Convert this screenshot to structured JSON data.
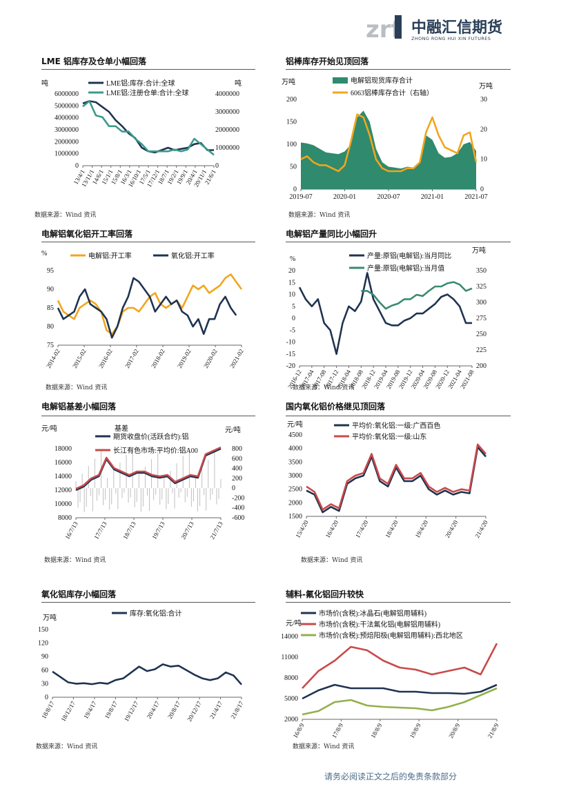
{
  "header": {
    "logo_mark": "zrf",
    "logo_cn": "中融汇信期货",
    "logo_en": "ZHONG RONG HUI XIN FUTURES",
    "colors": {
      "logo_gray": "#b9bec4",
      "logo_blue": "#2a3f57"
    }
  },
  "footer": {
    "disclaimer": "请务必阅读正文之后的免责条款部分"
  },
  "panels": [
    {
      "title": "LME 铝库存及仓单小幅回落",
      "source": "数据来源：Wind 资讯"
    },
    {
      "title": "铝棒库存开始见顶回落",
      "source": "数据来源：Wind 资讯"
    },
    {
      "title": "电解铝氧化铝开工率回落",
      "source": "数据来源：Wind 资讯"
    },
    {
      "title": "电解铝产量同比小幅回升",
      "source": "数据来源：Wind 资讯"
    },
    {
      "title": "电解铝基差小幅回落",
      "source": "数据来源：Wind 资讯"
    },
    {
      "title": "国内氧化铝价格继见顶回落",
      "source": "数据来源：Wind 资讯"
    },
    {
      "title": "氧化铝库存小幅回落",
      "source": "数据来源：Wind 资讯"
    },
    {
      "title": "辅料-氟化铝回升较快",
      "source": "数据来源：Wind 资讯"
    }
  ],
  "chart_data": [
    {
      "type": "line",
      "left_unit": "吨",
      "right_unit": "吨",
      "yticks_left": [
        "6000000",
        "5000000",
        "4000000",
        "3000000",
        "2000000",
        "1000000",
        "0"
      ],
      "yticks_right": [
        "4000000",
        "3000000",
        "2000000",
        "1000000",
        "0"
      ],
      "ylim_left": [
        0,
        6000000
      ],
      "ylim_right": [
        0,
        4000000
      ],
      "xticks": [
        "13/4/1",
        "13/11/1",
        "14/6/1",
        "15/1/1",
        "15/8/1",
        "16/3/1",
        "16/10/1",
        "17/5/1",
        "17/12/1",
        "18/7/1",
        "19/2/1",
        "19/9/1",
        "20/4/1",
        "20/11/1",
        "21/6/1"
      ],
      "series": [
        {
          "name": "LME铝:库存:合计:全球",
          "color": "#1f3350",
          "axis": "left",
          "values": [
            5200000,
            5400000,
            5300000,
            4900000,
            4500000,
            3800000,
            3300000,
            2700000,
            2300000,
            1500000,
            1200000,
            1100000,
            1300000,
            1500000,
            1300000,
            1400000,
            1500000,
            1800000,
            1900000,
            1300000,
            1300000
          ]
        },
        {
          "name": "LME铝:注册仓单:合计:全球",
          "color": "#3a9a8c",
          "axis": "right",
          "values": [
            3300000,
            3600000,
            2800000,
            2700000,
            2200000,
            2200000,
            1900000,
            1900000,
            1500000,
            1200000,
            800000,
            800000,
            800000,
            800000,
            900000,
            800000,
            900000,
            1500000,
            1200000,
            900000,
            600000
          ]
        }
      ]
    },
    {
      "type": "area+line",
      "left_unit": "万吨",
      "right_unit": "万吨",
      "yticks_left": [
        "200",
        "150",
        "100",
        "50",
        "0"
      ],
      "yticks_right": [
        "30",
        "20",
        "10",
        "0"
      ],
      "ylim_left": [
        0,
        200
      ],
      "ylim_right": [
        0,
        30
      ],
      "xticks": [
        "2019-07",
        "2020-01",
        "2020-07",
        "2021-01",
        "2021-07"
      ],
      "series": [
        {
          "name": "电解铝现货库存合计",
          "color": "#2f8a6e",
          "axis": "left",
          "values": [
            104,
            102,
            98,
            90,
            82,
            80,
            78,
            84,
            100,
            160,
            175,
            150,
            90,
            60,
            50,
            48,
            46,
            50,
            48,
            60,
            120,
            110,
            80,
            70,
            72,
            80,
            100,
            105,
            85
          ]
        },
        {
          "name": "6063铝棒库存合计（右轴）",
          "color": "#f2a51c",
          "axis": "right",
          "values": [
            10,
            11,
            9,
            8,
            8,
            7,
            6,
            8,
            16,
            25,
            24,
            18,
            10,
            7,
            6,
            6,
            6,
            7,
            7,
            9,
            19,
            24,
            18,
            14,
            13,
            12,
            18,
            19,
            9
          ]
        }
      ]
    },
    {
      "type": "line",
      "unit": "%",
      "yticks": [
        "95",
        "90",
        "85",
        "80",
        "75"
      ],
      "ylim": [
        75,
        95
      ],
      "xticks": [
        "2014-02",
        "2015-02",
        "2016-02",
        "2017-02",
        "2018-02",
        "2019-02",
        "2020-02",
        "2021-02"
      ],
      "series": [
        {
          "name": "电解铝:开工率",
          "color": "#f2a51c",
          "values": [
            87,
            84,
            83,
            82,
            85,
            86,
            87,
            86,
            84,
            79,
            78,
            80,
            84,
            85,
            85,
            84,
            86,
            88,
            89,
            86,
            85,
            86,
            87,
            85,
            88,
            91,
            90,
            91,
            89,
            90,
            91,
            93,
            94,
            92,
            90
          ]
        },
        {
          "name": "氧化铝:开工率",
          "color": "#1f3350",
          "values": [
            85,
            82,
            83,
            84,
            88,
            90,
            86,
            85,
            84,
            82,
            77,
            80,
            85,
            88,
            93,
            92,
            90,
            88,
            84,
            86,
            88,
            86,
            87,
            84,
            83,
            80,
            82,
            78,
            82,
            82,
            86,
            88,
            85,
            83
          ]
        }
      ]
    },
    {
      "type": "line",
      "left_unit": "%",
      "right_unit": "万吨",
      "yticks_left": [
        "20",
        "15",
        "10",
        "5",
        "0",
        "-5",
        "-10",
        "-15",
        "-20"
      ],
      "yticks_right": [
        "350",
        "325",
        "300",
        "275",
        "250",
        "225",
        "200"
      ],
      "ylim_left": [
        -20,
        20
      ],
      "ylim_right": [
        200,
        350
      ],
      "xticks": [
        "2016-12",
        "2017-04",
        "2017-08",
        "2017-12",
        "2018-04",
        "2018-08",
        "2018-12",
        "2019-04",
        "2019-08",
        "2019-12",
        "2020-04",
        "2020-08",
        "2020-12",
        "2021-04",
        "2021-08"
      ],
      "series": [
        {
          "name": "产量:原铝(电解铝):当月同比",
          "color": "#1f3350",
          "axis": "left",
          "values": [
            13,
            8,
            5,
            8,
            -2,
            -5,
            -15,
            -2,
            5,
            3,
            7,
            19,
            8,
            3,
            -2,
            -3,
            -3,
            -1,
            0,
            2,
            2,
            4,
            6,
            9,
            10,
            8,
            5,
            -2,
            -2
          ]
        },
        {
          "name": "产量:原铝(电解铝):当月值",
          "color": "#3a8a70",
          "axis": "right",
          "values": [
            null,
            null,
            null,
            null,
            null,
            null,
            null,
            null,
            null,
            null,
            318,
            318,
            312,
            300,
            290,
            295,
            298,
            305,
            305,
            312,
            310,
            318,
            325,
            325,
            330,
            332,
            328,
            318,
            322
          ]
        }
      ]
    },
    {
      "type": "line+bar",
      "left_unit": "元/吨",
      "right_unit": "元/吨",
      "bar_label": "基差",
      "yticks_left": [
        "18000",
        "16000",
        "14000",
        "12000",
        "10000",
        "8000"
      ],
      "yticks_right": [
        "800",
        "600",
        "400",
        "200",
        "0",
        "-200",
        "-400",
        "-600"
      ],
      "ylim_left": [
        8000,
        18000
      ],
      "ylim_right": [
        -600,
        800
      ],
      "xticks": [
        "16/7/13",
        "17/7/13",
        "18/7/13",
        "19/7/13",
        "20/7/13",
        "21/7/13"
      ],
      "series": [
        {
          "name": "期货收盘价(活跃合约):铝",
          "color": "#1f3350",
          "axis": "left",
          "values": [
            12000,
            12500,
            13500,
            14000,
            16500,
            15000,
            14500,
            14000,
            14500,
            14500,
            14000,
            13800,
            14000,
            13000,
            13500,
            14000,
            13800,
            17000,
            17500,
            18000
          ]
        },
        {
          "name": "长江有色市场:平均价:铝A00",
          "color": "#c84a4a",
          "axis": "left",
          "values": [
            12200,
            12700,
            13700,
            14200,
            16700,
            15200,
            14700,
            14200,
            14700,
            14700,
            14200,
            14000,
            14200,
            13200,
            13700,
            14200,
            14000,
            17200,
            17700,
            18200
          ]
        }
      ]
    },
    {
      "type": "line",
      "unit": "元/吨",
      "yticks": [
        "4500",
        "4000",
        "3500",
        "3000",
        "2500",
        "2000",
        "1500"
      ],
      "ylim": [
        1500,
        4500
      ],
      "xticks": [
        "15/4/20",
        "16/4/20",
        "17/4/20",
        "18/4/20",
        "19/4/20",
        "20/4/20",
        "21/4/20"
      ],
      "series": [
        {
          "name": "平均价:氧化铝:一级:广西百色",
          "color": "#1f3350",
          "values": [
            2450,
            2300,
            1650,
            1850,
            1700,
            2700,
            2900,
            3000,
            3700,
            2800,
            2600,
            3300,
            2800,
            2800,
            3000,
            2500,
            2300,
            2450,
            2300,
            2400,
            2350,
            4050,
            3700
          ]
        },
        {
          "name": "平均价:氧化铝:一级:山东",
          "color": "#c84a4a",
          "values": [
            2600,
            2400,
            1750,
            1950,
            1800,
            2800,
            3000,
            3100,
            3800,
            2900,
            2700,
            3400,
            2900,
            2900,
            3100,
            2600,
            2400,
            2550,
            2400,
            2500,
            2450,
            4150,
            3800
          ]
        }
      ]
    },
    {
      "type": "line",
      "unit": "万吨",
      "yticks": [
        "150",
        "120",
        "90",
        "60",
        "30",
        "0"
      ],
      "ylim": [
        0,
        150
      ],
      "xticks": [
        "18/8/17",
        "18/12/17",
        "19/4/17",
        "19/8/17",
        "19/12/17",
        "20/4/17",
        "20/8/17",
        "20/12/17",
        "21/4/17",
        "21/8/17"
      ],
      "series": [
        {
          "name": "库存:氧化铝:合计",
          "color": "#1f3350",
          "values": [
            57,
            45,
            33,
            30,
            31,
            29,
            32,
            30,
            38,
            42,
            55,
            68,
            58,
            62,
            73,
            68,
            70,
            60,
            50,
            42,
            38,
            42,
            55,
            48,
            28
          ]
        }
      ]
    },
    {
      "type": "line",
      "unit": "元/吨",
      "yticks": [
        "14000",
        "11000",
        "8000",
        "5000",
        "2000"
      ],
      "ylim": [
        2000,
        14000
      ],
      "xticks": [
        "16/8/9",
        "17/8/9",
        "18/8/9",
        "19/8/9",
        "20/8/9",
        "21/8/9"
      ],
      "series": [
        {
          "name": "市场价(含税):冰晶石(电解铝用辅料)",
          "color": "#1f3350",
          "values": [
            5000,
            6200,
            7000,
            6500,
            6500,
            6500,
            6000,
            6000,
            5800,
            5800,
            5700,
            6000,
            7000
          ]
        },
        {
          "name": "市场价(含税):干法氟化铝(电解铝用辅料)",
          "color": "#c84a4a",
          "values": [
            6500,
            9000,
            10500,
            12500,
            12000,
            10500,
            9500,
            9200,
            8500,
            9000,
            9500,
            8500,
            13000
          ]
        },
        {
          "name": "市场价(含税):预焙阳极(电解铝用辅料):西北地区",
          "color": "#92b04a",
          "values": [
            2700,
            3200,
            4500,
            4800,
            4000,
            3800,
            3700,
            3600,
            3300,
            3800,
            4500,
            5500,
            6500
          ]
        }
      ]
    }
  ]
}
